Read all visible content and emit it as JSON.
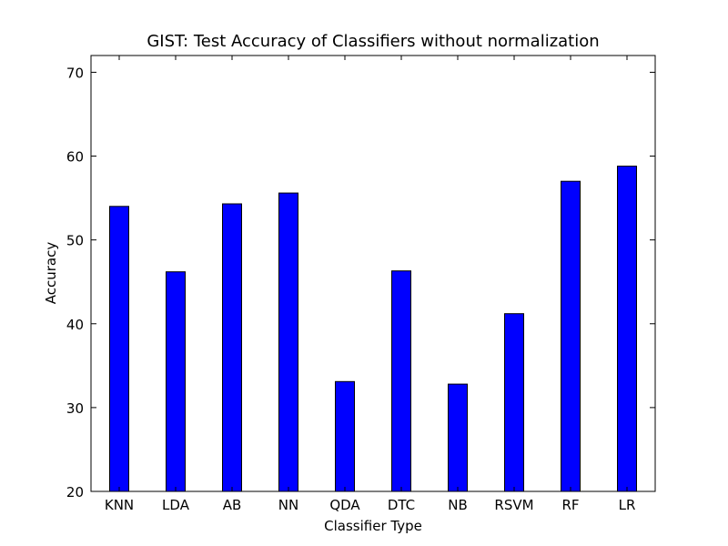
{
  "chart_data": {
    "type": "bar",
    "title": "GIST: Test Accuracy of Classifiers without normalization",
    "xlabel": "Classifier Type",
    "ylabel": "Accuracy",
    "categories": [
      "KNN",
      "LDA",
      "AB",
      "NN",
      "QDA",
      "DTC",
      "NB",
      "RSVM",
      "RF",
      "LR"
    ],
    "values": [
      54.0,
      46.2,
      54.3,
      55.6,
      33.1,
      46.3,
      32.8,
      41.2,
      57.0,
      58.8
    ],
    "ylim": [
      20,
      72
    ],
    "yticks": [
      20,
      30,
      40,
      50,
      60,
      70
    ],
    "grid": false,
    "bar_color": "#0000ff",
    "edge_color": "#000000"
  }
}
